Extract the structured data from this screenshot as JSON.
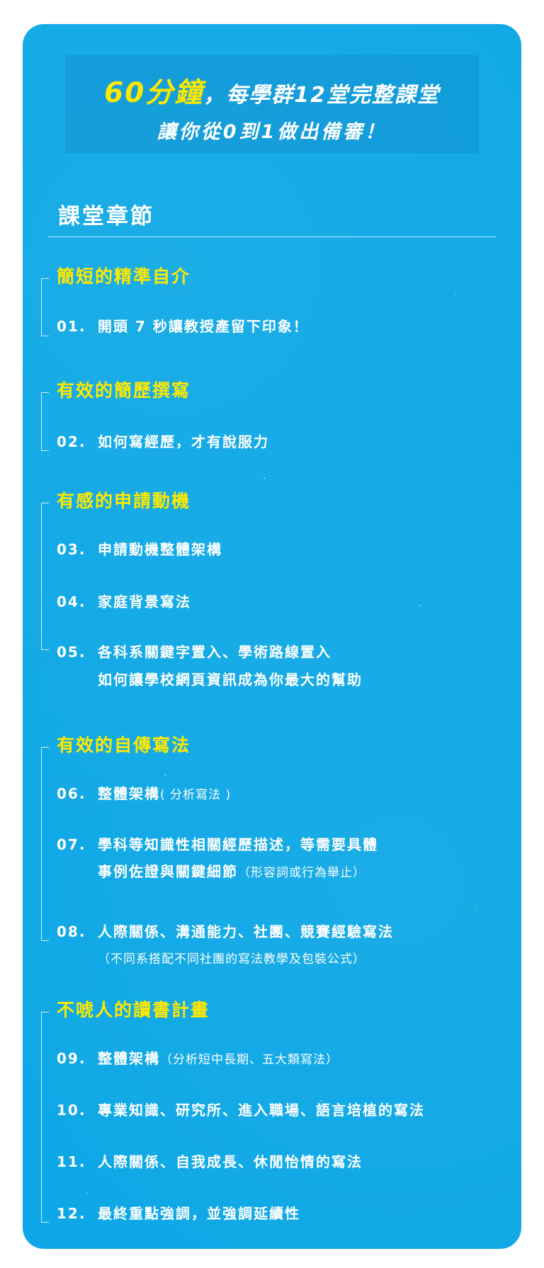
{
  "hero": {
    "line1_accent": "60分鐘",
    "line1_rest": "，每學群12堂完整課堂",
    "line2": "讓你從0到1做出備審！"
  },
  "chapters_heading": "課堂章節",
  "sections": [
    {
      "title": "簡短的精準自介",
      "items": [
        {
          "num": "01.",
          "text": "開頭 7 秒讓教授產留下印象！"
        }
      ]
    },
    {
      "title": "有效的簡歷撰寫",
      "items": [
        {
          "num": "02.",
          "text": "如何寫經歷，才有說服力"
        }
      ]
    },
    {
      "title": "有感的申請動機",
      "items": [
        {
          "num": "03.",
          "text": "申請動機整體架構"
        },
        {
          "num": "04.",
          "text": "家庭背景寫法"
        },
        {
          "num": "05.",
          "text": "各科系關鍵字置入、學術路線置入",
          "line2": "如何讓學校網頁資訊成為你最大的幫助"
        }
      ]
    },
    {
      "title": "有效的自傳寫法",
      "items": [
        {
          "num": "06.",
          "text": "整體架構",
          "note": "( 分析寫法 )"
        },
        {
          "num": "07.",
          "text": "學科等知識性相關經歷描述，等需要具體",
          "line2": "事例佐證與關鍵細節",
          "line2_note": "（形容詞或行為舉止）"
        },
        {
          "num": "08.",
          "text": "人際關係、溝通能力、社團、競賽經驗寫法",
          "line2_note": "（不同系搭配不同社團的寫法教學及包裝公式）"
        }
      ]
    },
    {
      "title": "不唬人的讀書計畫",
      "items": [
        {
          "num": "09.",
          "text": "整體架構",
          "note": "（分析短中長期、五大類寫法）"
        },
        {
          "num": "10.",
          "text": "專業知識、研究所、進入職場、語言培植的寫法"
        },
        {
          "num": "11.",
          "text": "人際關係、自我成長、休閒怡情的寫法"
        },
        {
          "num": "12.",
          "text": "最終重點強調，並強調延續性"
        }
      ]
    }
  ],
  "colors": {
    "background": "#0ea8e6",
    "accent": "#fde900",
    "text": "#ffffff"
  }
}
